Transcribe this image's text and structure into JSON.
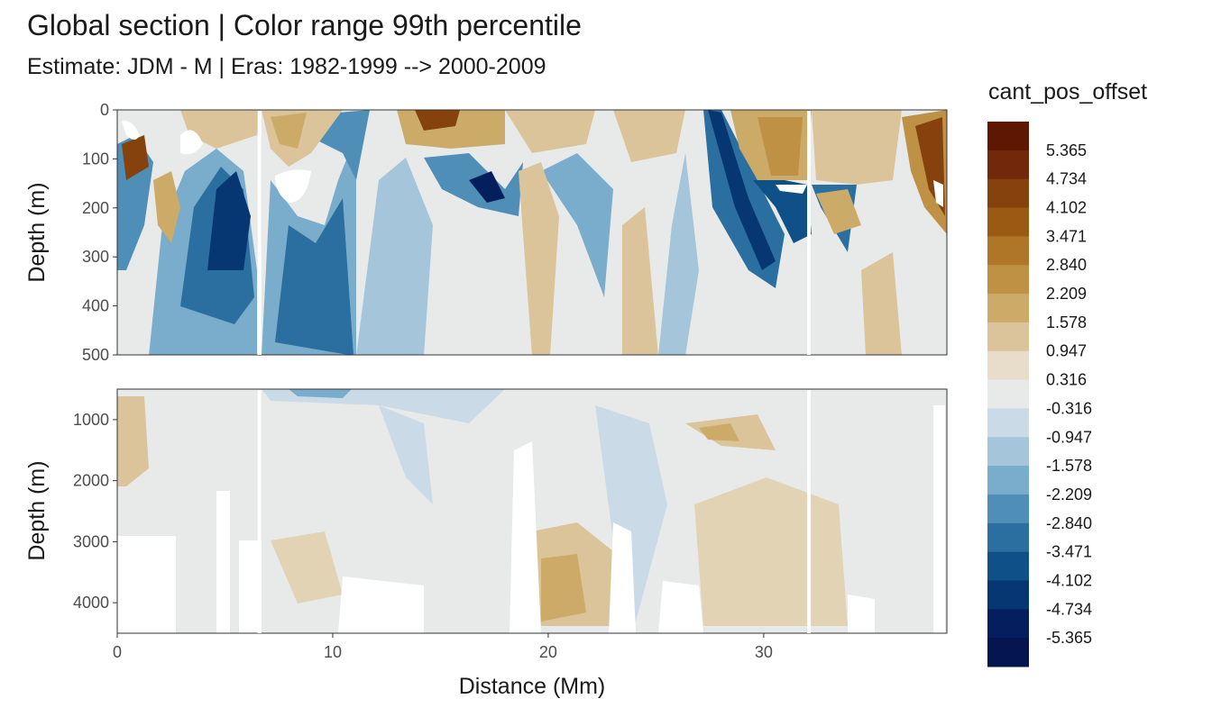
{
  "title": "Global section | Color range 99th percentile",
  "subtitle": "Estimate: JDM - M | Eras: 1982-1999 --> 2000-2009",
  "chart_data": {
    "type": "heatmap",
    "xlabel": "Distance (Mm)",
    "ylabel": "Depth (m)",
    "xlim": [
      0,
      38.5
    ],
    "x_ticks": [
      "0",
      "10",
      "20",
      "30"
    ],
    "panels": [
      {
        "ylim": [
          0,
          500
        ],
        "y_ticks": [
          "0",
          "100",
          "200",
          "300",
          "400",
          "500"
        ],
        "y_tick_values": [
          0,
          100,
          200,
          300,
          400,
          500
        ]
      },
      {
        "ylim": [
          500,
          4500
        ],
        "y_ticks": [
          "1000",
          "2000",
          "3000",
          "4000"
        ],
        "y_tick_values": [
          1000,
          2000,
          3000,
          4000
        ]
      }
    ],
    "section_gaps_x": [
      6.6,
      32.1
    ],
    "legend": {
      "title": "cant_pos_offset",
      "labels": [
        "5.365",
        "4.734",
        "4.102",
        "3.471",
        "2.840",
        "2.209",
        "1.578",
        "0.947",
        "0.316",
        "-0.316",
        "-0.947",
        "-1.578",
        "-2.209",
        "-2.840",
        "-3.471",
        "-4.102",
        "-4.734",
        "-5.365"
      ],
      "colors": [
        "#5e1700",
        "#72280a",
        "#86420c",
        "#9a5a14",
        "#ae7626",
        "#be9144",
        "#ccaa68",
        "#dbc49a",
        "#e8ddca",
        "#e8eaea",
        "#cadbe7",
        "#a4c5da",
        "#7aaccb",
        "#4f8eb6",
        "#2b6fa0",
        "#0f5089",
        "#073772",
        "#051f5e",
        "#041550"
      ]
    }
  }
}
